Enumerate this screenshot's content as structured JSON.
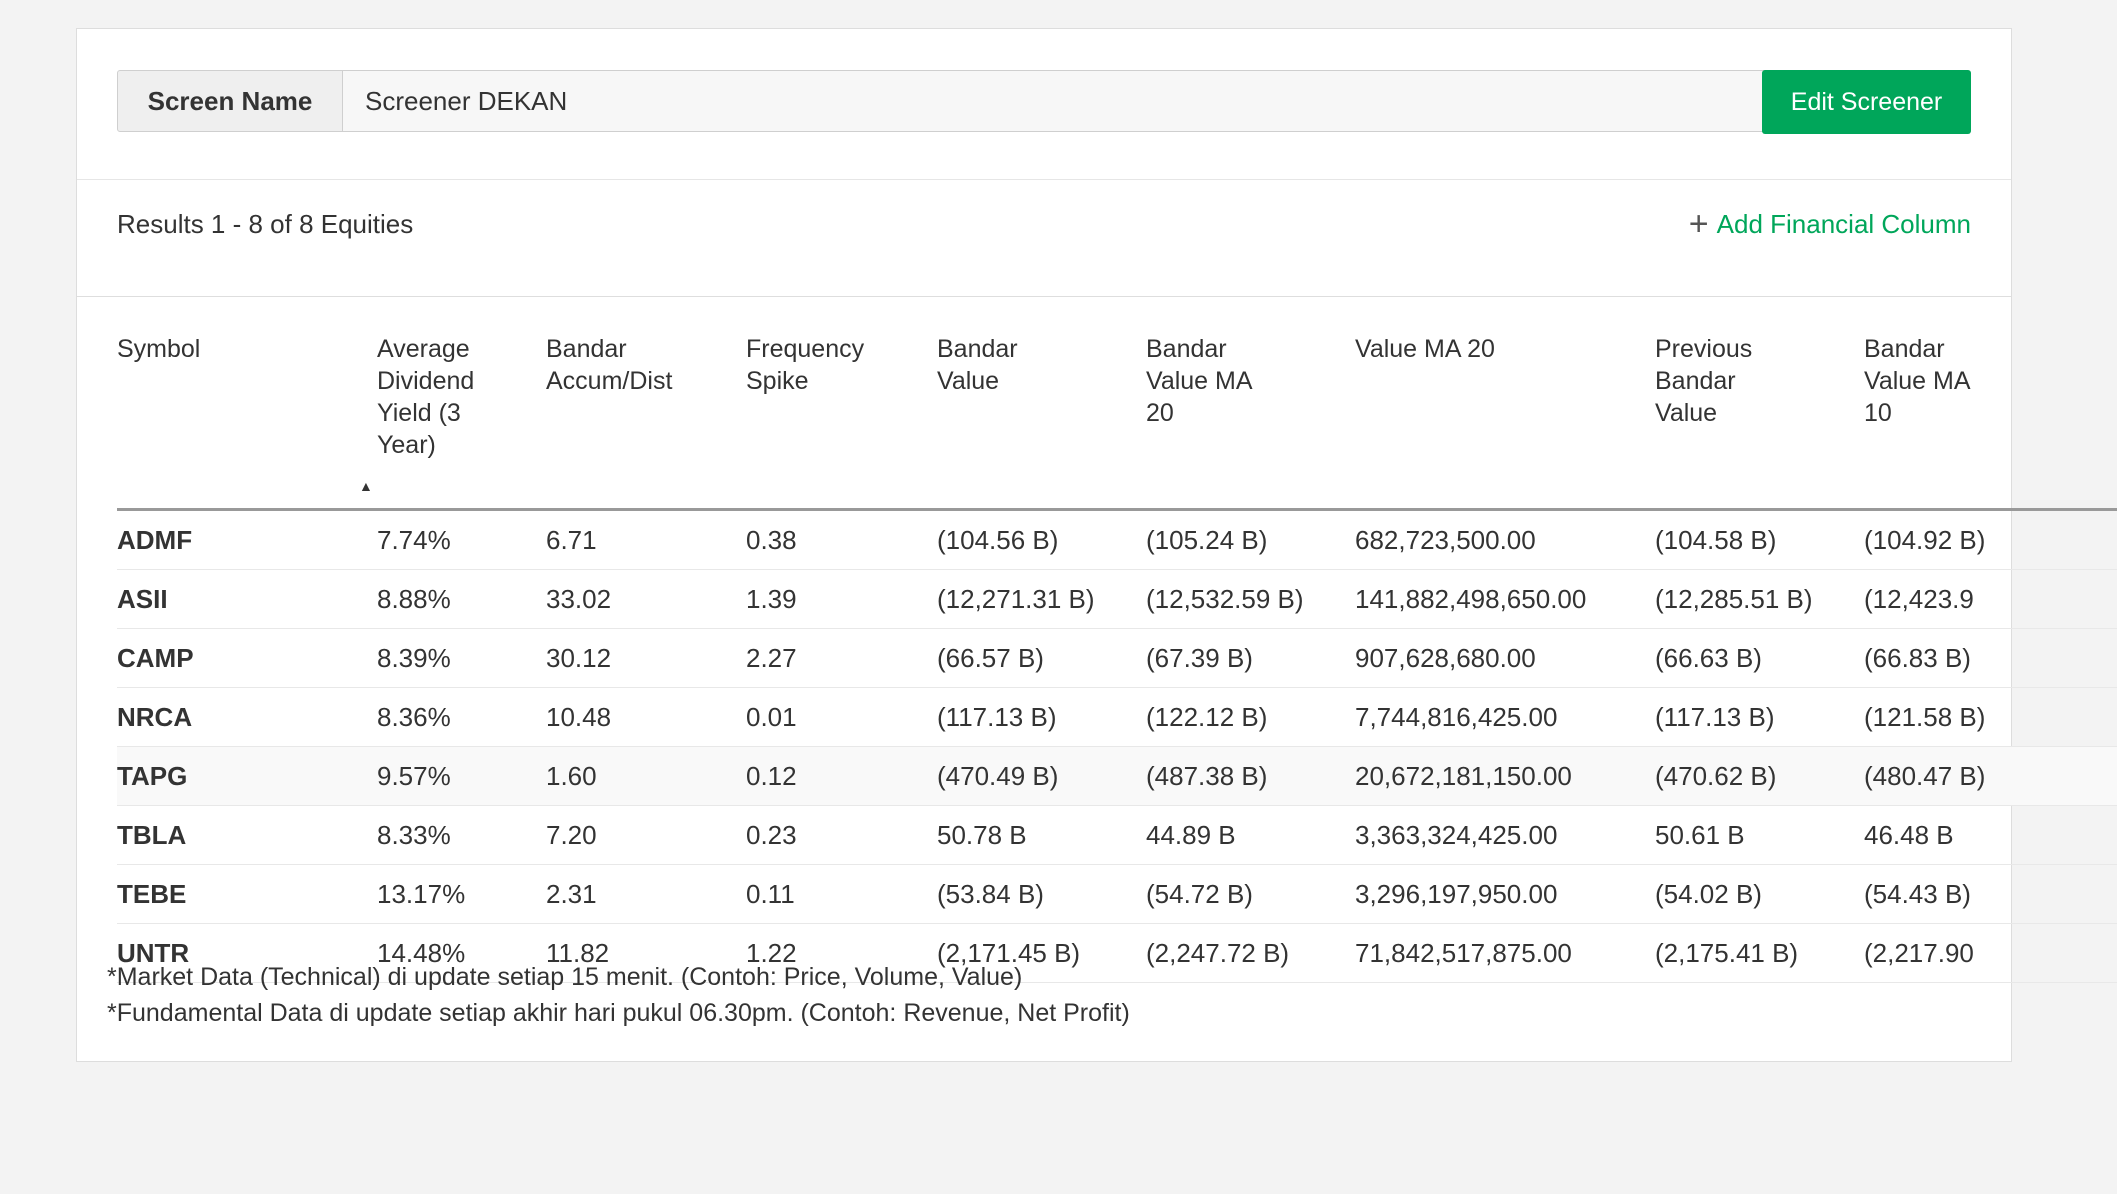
{
  "screen": {
    "label": "Screen Name",
    "value": "Screener DEKAN",
    "edit_button": "Edit Screener"
  },
  "results": {
    "summary": "Results 1 - 8 of 8 Equities",
    "add_column_icon": "plus-icon",
    "add_column_label": "Add Financial Column"
  },
  "table": {
    "headers": [
      "Symbol",
      "Average Dividend Yield (3 Year)",
      "Bandar Accum/Dist",
      "Frequency Spike",
      "Bandar Value",
      "Bandar Value MA 20",
      "Value MA 20",
      "Previous Bandar Value",
      "Bandar Value MA 10"
    ],
    "sort_indicator": "▲",
    "rows": [
      [
        "ADMF",
        "7.74%",
        "6.71",
        "0.38",
        "(104.56 B)",
        "(105.24 B)",
        "682,723,500.00",
        "(104.58 B)",
        "(104.92 B)"
      ],
      [
        "ASII",
        "8.88%",
        "33.02",
        "1.39",
        "(12,271.31 B)",
        "(12,532.59 B)",
        "141,882,498,650.00",
        "(12,285.51 B)",
        "(12,423.9"
      ],
      [
        "CAMP",
        "8.39%",
        "30.12",
        "2.27",
        "(66.57 B)",
        "(67.39 B)",
        "907,628,680.00",
        "(66.63 B)",
        "(66.83 B)"
      ],
      [
        "NRCA",
        "8.36%",
        "10.48",
        "0.01",
        "(117.13 B)",
        "(122.12 B)",
        "7,744,816,425.00",
        "(117.13 B)",
        "(121.58 B)"
      ],
      [
        "TAPG",
        "9.57%",
        "1.60",
        "0.12",
        "(470.49 B)",
        "(487.38 B)",
        "20,672,181,150.00",
        "(470.62 B)",
        "(480.47 B)"
      ],
      [
        "TBLA",
        "8.33%",
        "7.20",
        "0.23",
        "50.78 B",
        "44.89 B",
        "3,363,324,425.00",
        "50.61 B",
        "46.48 B"
      ],
      [
        "TEBE",
        "13.17%",
        "2.31",
        "0.11",
        "(53.84 B)",
        "(54.72 B)",
        "3,296,197,950.00",
        "(54.02 B)",
        "(54.43 B)"
      ],
      [
        "UNTR",
        "14.48%",
        "11.82",
        "1.22",
        "(2,171.45 B)",
        "(2,247.72 B)",
        "71,842,517,875.00",
        "(2,175.41 B)",
        "(2,217.90"
      ]
    ]
  },
  "footnotes": [
    "*Market Data (Technical) di update setiap 15 menit. (Contoh: Price, Volume, Value)",
    "*Fundamental Data di update setiap akhir hari pukul 06.30pm. (Contoh: Revenue, Net Profit)"
  ],
  "colors": {
    "accent": "#00a65a",
    "background": "#f3f3f3"
  }
}
